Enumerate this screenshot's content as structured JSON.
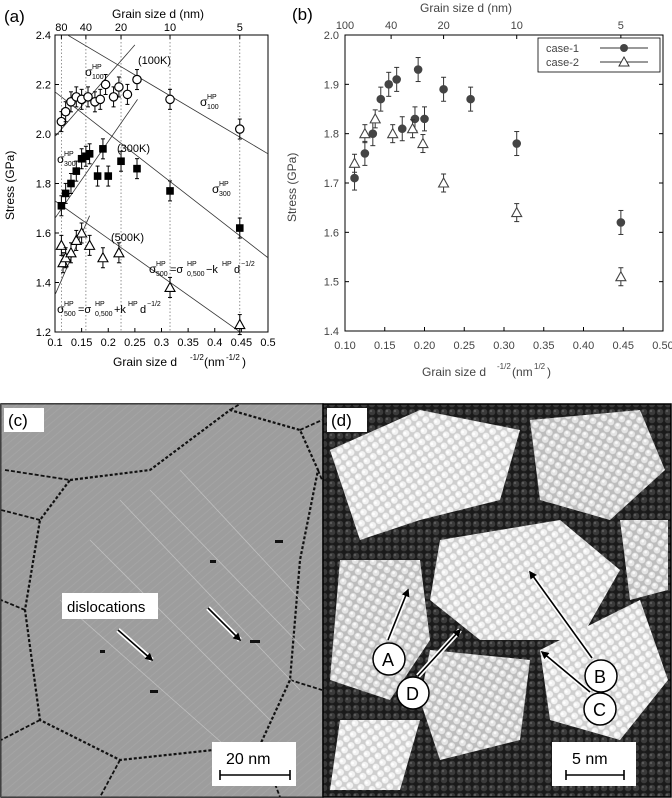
{
  "chart_data": [
    {
      "panel_label": "(a)",
      "type": "scatter",
      "xlabel": "Grain size d",
      "xlabel_exponent": "-1/2",
      "xlabel_unit": "(nm",
      "xlabel_unit_exponent": "-1/2",
      "ylabel": "Stress (GPa)",
      "top_axis_label": "Grain size d (nm)",
      "top_ticks": [
        "80",
        "40",
        "20",
        "10",
        "5"
      ],
      "top_tick_positions": [
        0.112,
        0.158,
        0.224,
        0.316,
        0.447
      ],
      "xlim": [
        0.1,
        0.5
      ],
      "ylim": [
        1.2,
        2.4
      ],
      "xticks": [
        "0.1",
        "0.15",
        "0.2",
        "0.25",
        "0.3",
        "0.35",
        "0.4",
        "0.45",
        "0.5"
      ],
      "yticks": [
        "1.2",
        "1.4",
        "1.6",
        "1.8",
        "2.0",
        "2.2",
        "2.4"
      ],
      "series": [
        {
          "name": "(100K)",
          "marker": "circle-open",
          "x": [
            0.112,
            0.12,
            0.13,
            0.14,
            0.15,
            0.162,
            0.175,
            0.185,
            0.195,
            0.21,
            0.22,
            0.236,
            0.254,
            0.316,
            0.447
          ],
          "y": [
            2.05,
            2.09,
            2.13,
            2.15,
            2.14,
            2.15,
            2.13,
            2.14,
            2.2,
            2.15,
            2.19,
            2.16,
            2.22,
            2.14,
            2.02
          ]
        },
        {
          "name": "(300K)",
          "marker": "square-filled",
          "x": [
            0.112,
            0.12,
            0.13,
            0.14,
            0.15,
            0.158,
            0.165,
            0.18,
            0.19,
            0.2,
            0.224,
            0.254,
            0.316,
            0.447
          ],
          "y": [
            1.71,
            1.76,
            1.8,
            1.85,
            1.9,
            1.91,
            1.92,
            1.83,
            1.94,
            1.83,
            1.89,
            1.86,
            1.77,
            1.62
          ]
        },
        {
          "name": "(500K)",
          "marker": "triangle-open",
          "x": [
            0.112,
            0.115,
            0.12,
            0.13,
            0.14,
            0.15,
            0.165,
            0.19,
            0.22,
            0.316,
            0.447
          ],
          "y": [
            1.55,
            1.48,
            1.5,
            1.52,
            1.57,
            1.6,
            1.55,
            1.5,
            1.52,
            1.38,
            1.23
          ]
        }
      ],
      "fit_lines": [
        {
          "x": [
            0.1,
            0.5
          ],
          "y": [
            2.43,
            1.92
          ]
        },
        {
          "x": [
            0.1,
            0.5
          ],
          "y": [
            2.17,
            1.5
          ]
        },
        {
          "x": [
            0.1,
            0.5
          ],
          "y": [
            1.73,
            1.12
          ]
        }
      ],
      "hp_lines": [
        {
          "x": [
            0.1,
            0.25
          ],
          "y": [
            1.99,
            2.36
          ]
        },
        {
          "x": [
            0.1,
            0.255
          ],
          "y": [
            1.66,
            2.14
          ]
        },
        {
          "x": [
            0.1,
            0.165
          ],
          "y": [
            1.35,
            1.67
          ]
        }
      ],
      "vertical_dotted_x": [
        0.112,
        0.158,
        0.224,
        0.316,
        0.447
      ],
      "annotations": {
        "k100": "(100K)",
        "k300": "(300K)",
        "k500": "(500K)",
        "sigma": "σ",
        "hp": "HP",
        "idx100": "100",
        "idx300": "300",
        "idx500": "500",
        "formula_minus_rest": "=σ",
        "formula_sub": "0,500",
        "formula_k": "−k",
        "formula_plus_k": "+k",
        "formula_d": "d",
        "formula_exp": "−1/2"
      }
    },
    {
      "panel_label": "(b)",
      "type": "scatter",
      "xlabel": "Grain size d",
      "xlabel_exponent": "-1/2",
      "xlabel_unit": "(nm",
      "xlabel_unit_exponent": "1/2",
      "ylabel": "Stress (GPa)",
      "top_axis_label": "Grain size d (nm)",
      "top_ticks": [
        "100",
        "40",
        "20",
        "10",
        "5"
      ],
      "top_tick_positions": [
        0.1,
        0.158,
        0.224,
        0.316,
        0.447
      ],
      "xlim": [
        0.1,
        0.5
      ],
      "ylim": [
        1.4,
        2.0
      ],
      "xticks": [
        "0.10",
        "0.15",
        "0.20",
        "0.25",
        "0.30",
        "0.35",
        "0.40",
        "0.45",
        "0.50"
      ],
      "yticks": [
        "1.4",
        "1.5",
        "1.6",
        "1.7",
        "1.8",
        "1.9",
        "2.0"
      ],
      "legend_position": "top-right",
      "series": [
        {
          "name": "case-1",
          "marker": "circle-filled",
          "x": [
            0.112,
            0.125,
            0.135,
            0.145,
            0.155,
            0.165,
            0.172,
            0.188,
            0.192,
            0.2,
            0.224,
            0.258,
            0.316,
            0.447
          ],
          "y": [
            1.71,
            1.76,
            1.8,
            1.87,
            1.9,
            1.91,
            1.81,
            1.83,
            1.93,
            1.83,
            1.89,
            1.87,
            1.78,
            1.62
          ]
        },
        {
          "name": "case-2",
          "marker": "triangle-open",
          "x": [
            0.112,
            0.125,
            0.138,
            0.16,
            0.185,
            0.198,
            0.224,
            0.316,
            0.447
          ],
          "y": [
            1.74,
            1.8,
            1.83,
            1.8,
            1.81,
            1.78,
            1.7,
            1.64,
            1.51
          ]
        }
      ]
    }
  ],
  "panel_c": {
    "label": "(c)",
    "arrow_text": "dislocations",
    "scale": "20 nm"
  },
  "panel_d": {
    "label": "(d)",
    "scale": "5 nm",
    "markers": [
      "A",
      "B",
      "C",
      "D"
    ]
  }
}
